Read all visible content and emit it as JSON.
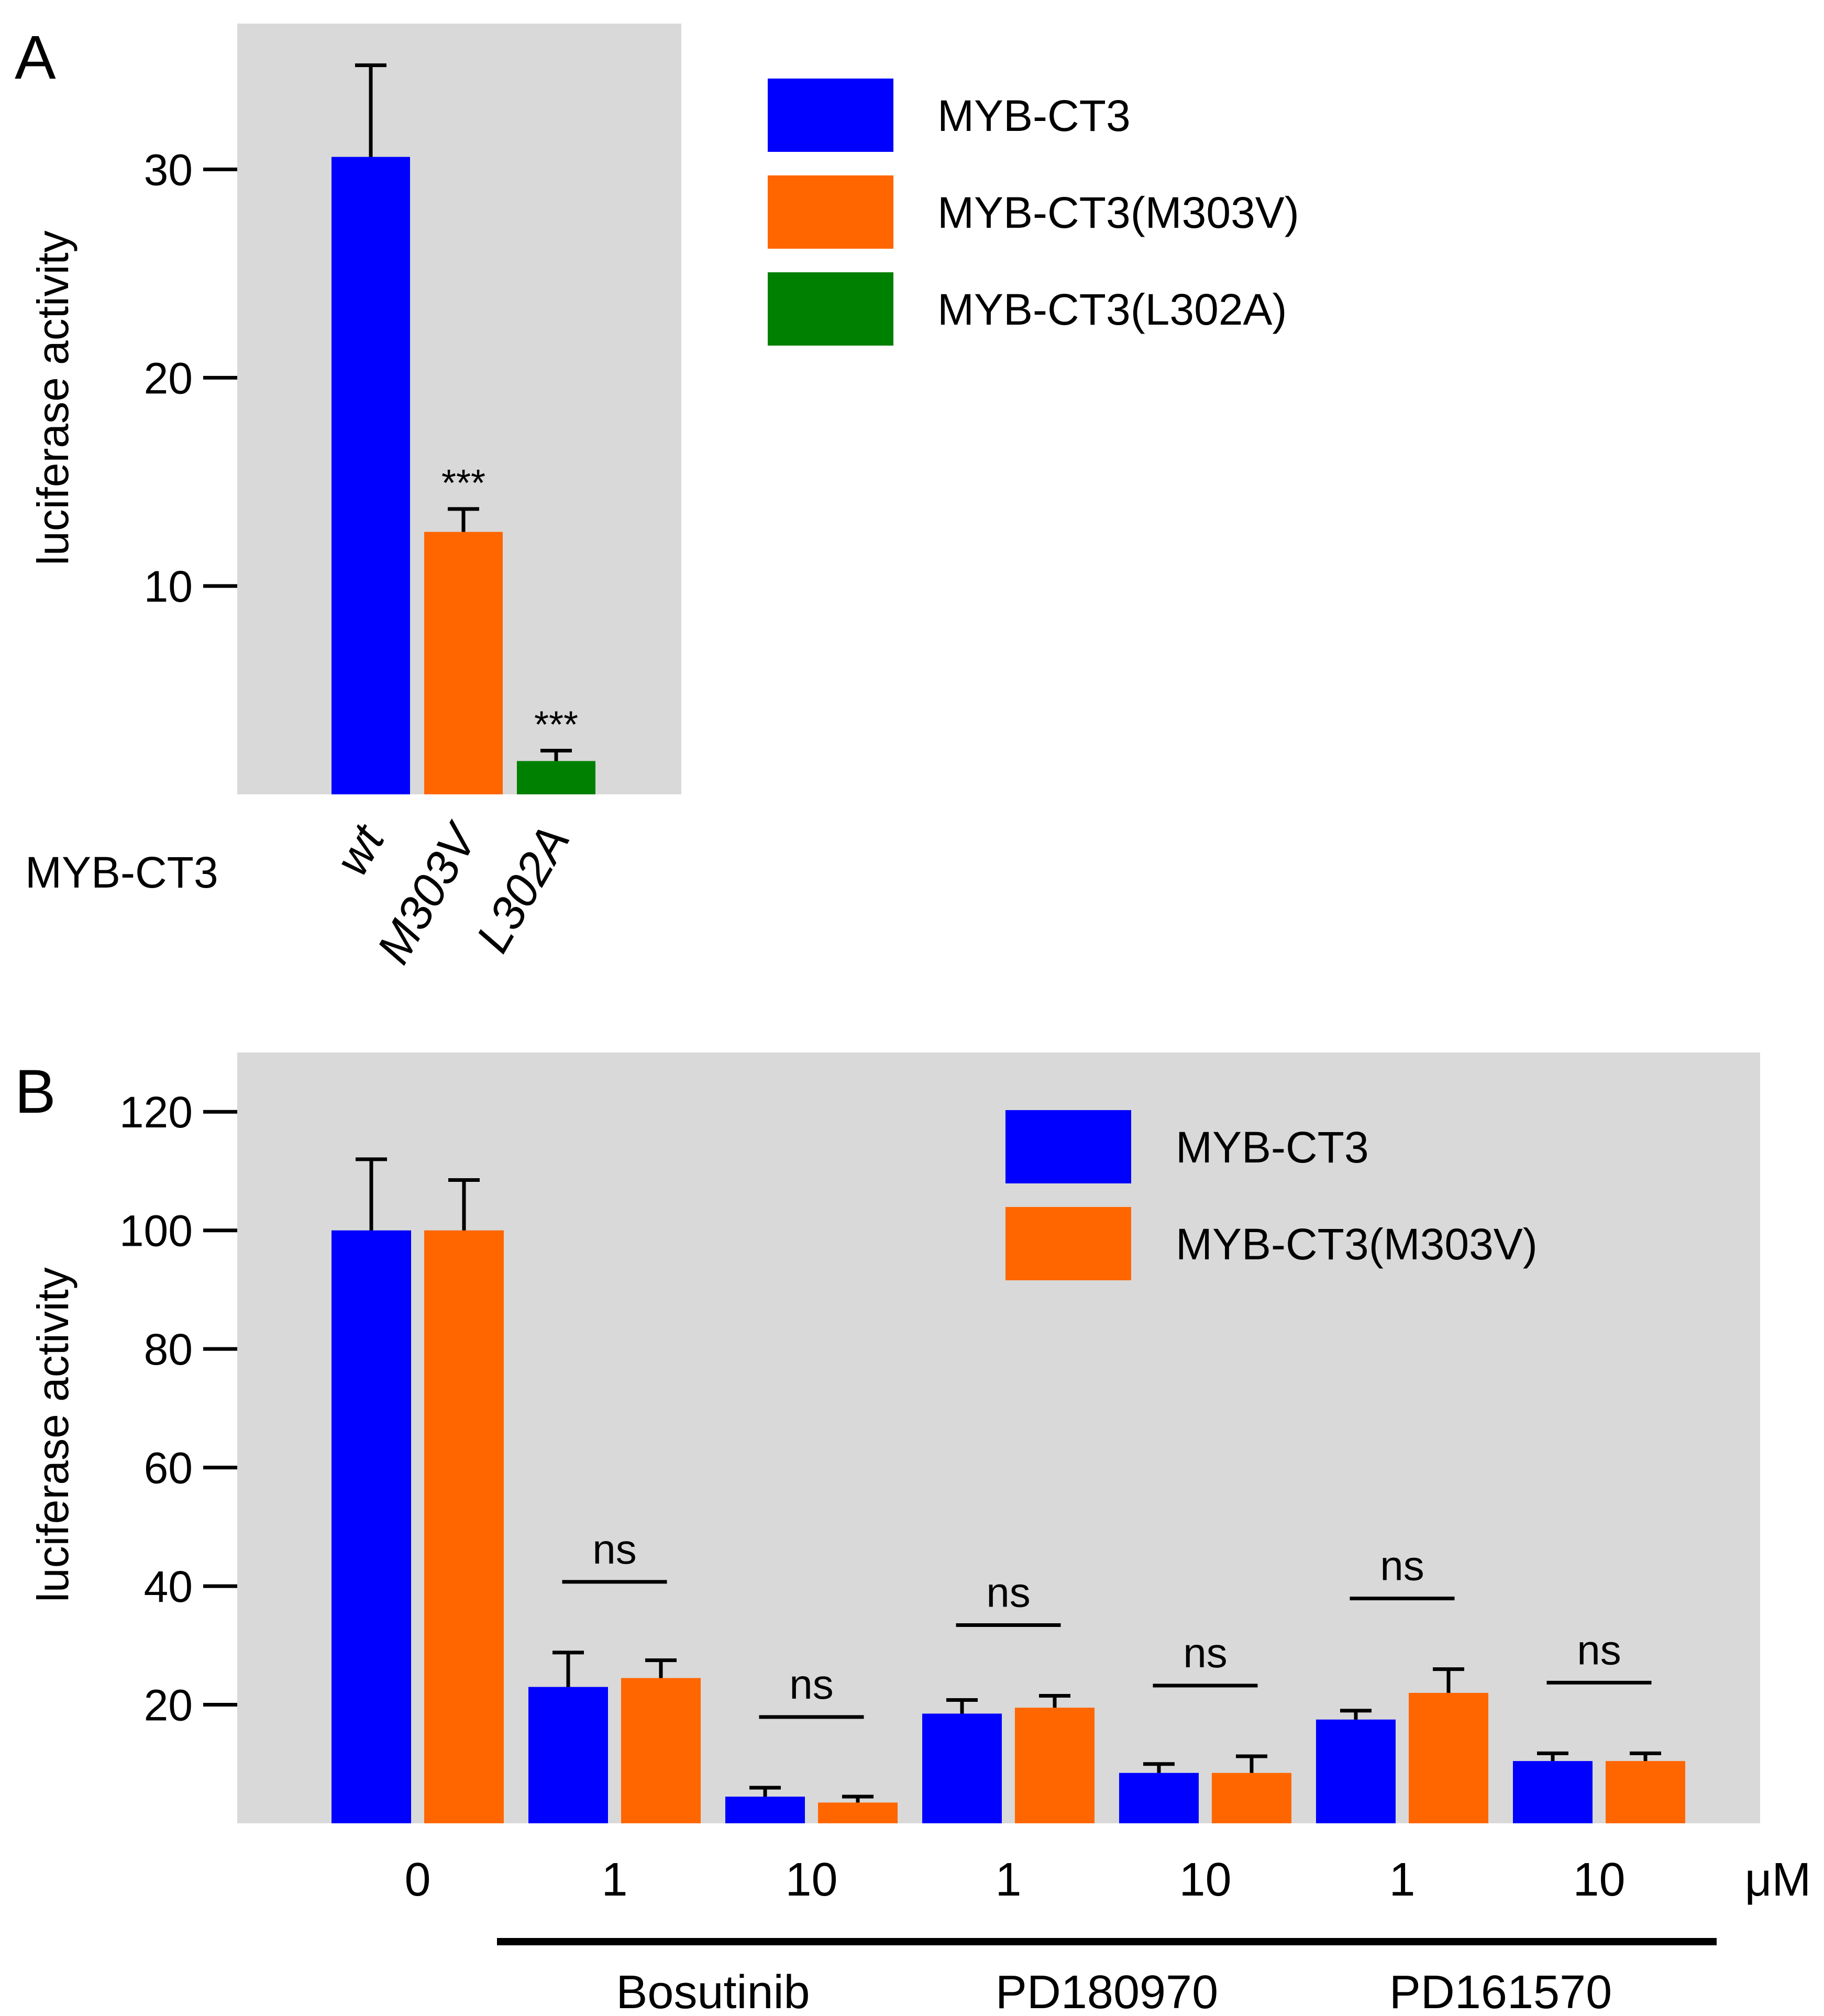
{
  "colors": {
    "panel_bg": "#d9d9d9",
    "blue": "#0000ff",
    "orange": "#ff6600",
    "green": "#008000",
    "ink": "#000000"
  },
  "chart_data": [
    {
      "panel_label": "A",
      "type": "bar",
      "ylabel": "luciferase activity",
      "ylim": [
        0,
        37
      ],
      "yticks": [
        10,
        20,
        30
      ],
      "group_label": "MYB-CT3",
      "categories": [
        "wt",
        "M303V",
        "L302A"
      ],
      "values": [
        30.6,
        12.6,
        1.6
      ],
      "errors": [
        4.4,
        1.1,
        0.5
      ],
      "bar_colors": [
        "blue",
        "orange",
        "green"
      ],
      "annotations": [
        "",
        "***",
        "***"
      ],
      "legend": [
        {
          "name": "MYB-CT3",
          "color": "blue"
        },
        {
          "name": "MYB-CT3(M303V)",
          "color": "orange"
        },
        {
          "name": "MYB-CT3(L302A)",
          "color": "green"
        }
      ],
      "legend_position": "right"
    },
    {
      "panel_label": "B",
      "type": "bar",
      "ylabel": "luciferase activity",
      "ylim": [
        0,
        130
      ],
      "yticks": [
        20,
        40,
        60,
        80,
        100,
        120
      ],
      "unit": "μM",
      "groups": [
        {
          "dose": "0",
          "drug": "",
          "values": [
            100,
            100
          ],
          "errors": [
            12,
            8.5
          ],
          "sig": ""
        },
        {
          "dose": "1",
          "drug": "Bosutinib",
          "values": [
            23,
            24.5
          ],
          "errors": [
            5.8,
            3
          ],
          "sig": "ns"
        },
        {
          "dose": "10",
          "drug": "Bosutinib",
          "values": [
            4.5,
            3.5
          ],
          "errors": [
            1.5,
            1
          ],
          "sig": "ns"
        },
        {
          "dose": "1",
          "drug": "PD180970",
          "values": [
            18.5,
            19.5
          ],
          "errors": [
            2.3,
            2
          ],
          "sig": "ns"
        },
        {
          "dose": "10",
          "drug": "PD180970",
          "values": [
            8.5,
            8.5
          ],
          "errors": [
            1.5,
            2.8
          ],
          "sig": "ns"
        },
        {
          "dose": "1",
          "drug": "PD161570",
          "values": [
            17.5,
            22
          ],
          "errors": [
            1.5,
            4
          ],
          "sig": "ns"
        },
        {
          "dose": "10",
          "drug": "PD161570",
          "values": [
            10.5,
            10.5
          ],
          "errors": [
            1.3,
            1.3
          ],
          "sig": "ns"
        }
      ],
      "drugs": [
        "Bosutinib",
        "PD180970",
        "PD161570"
      ],
      "legend": [
        {
          "name": "MYB-CT3",
          "color": "blue"
        },
        {
          "name": "MYB-CT3(M303V)",
          "color": "orange"
        }
      ],
      "legend_position": "top-right"
    }
  ]
}
